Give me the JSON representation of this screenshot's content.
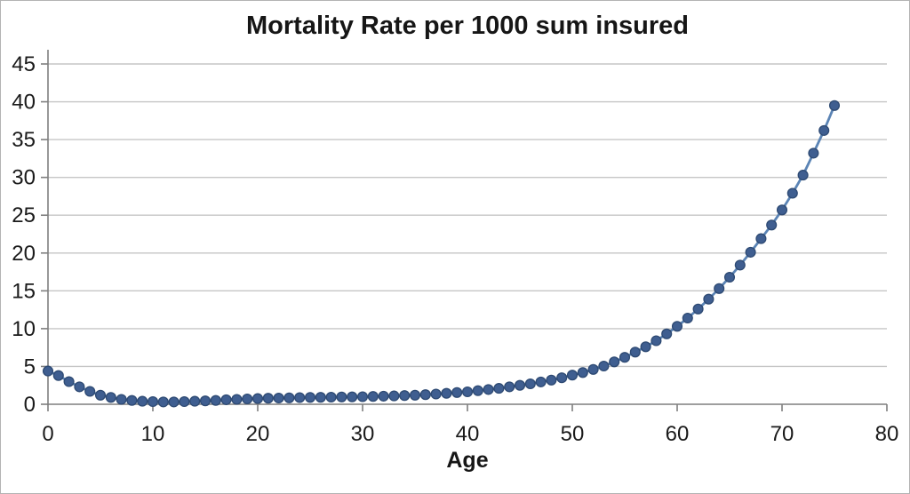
{
  "chart_data": {
    "type": "line",
    "title": "Mortality Rate per 1000 sum insured",
    "xlabel": "Age",
    "ylabel": "",
    "xlim": [
      0,
      80
    ],
    "ylim": [
      0,
      45
    ],
    "x_ticks": [
      0,
      10,
      20,
      30,
      40,
      50,
      60,
      70,
      80
    ],
    "y_ticks": [
      0,
      5,
      10,
      15,
      20,
      25,
      30,
      35,
      40,
      45
    ],
    "grid": "horizontal",
    "legend": "none",
    "x": [
      0,
      1,
      2,
      3,
      4,
      5,
      6,
      7,
      8,
      9,
      10,
      11,
      12,
      13,
      14,
      15,
      16,
      17,
      18,
      19,
      20,
      21,
      22,
      23,
      24,
      25,
      26,
      27,
      28,
      29,
      30,
      31,
      32,
      33,
      34,
      35,
      36,
      37,
      38,
      39,
      40,
      41,
      42,
      43,
      44,
      45,
      46,
      47,
      48,
      49,
      50,
      51,
      52,
      53,
      54,
      55,
      56,
      57,
      58,
      59,
      60,
      61,
      62,
      63,
      64,
      65,
      66,
      67,
      68,
      69,
      70,
      71,
      72,
      73,
      74,
      75
    ],
    "series": [
      {
        "name": "Mortality Rate per 1000 sum insured",
        "values": [
          4.4,
          3.8,
          3.0,
          2.3,
          1.7,
          1.2,
          0.9,
          0.65,
          0.5,
          0.4,
          0.35,
          0.3,
          0.3,
          0.35,
          0.4,
          0.45,
          0.5,
          0.6,
          0.65,
          0.7,
          0.75,
          0.8,
          0.82,
          0.85,
          0.88,
          0.9,
          0.92,
          0.94,
          0.96,
          0.98,
          1.0,
          1.03,
          1.07,
          1.1,
          1.15,
          1.2,
          1.27,
          1.35,
          1.45,
          1.55,
          1.65,
          1.8,
          1.95,
          2.1,
          2.3,
          2.5,
          2.7,
          2.95,
          3.2,
          3.5,
          3.85,
          4.2,
          4.6,
          5.05,
          5.6,
          6.2,
          6.9,
          7.6,
          8.4,
          9.3,
          10.3,
          11.4,
          12.6,
          13.9,
          15.3,
          16.8,
          18.4,
          20.1,
          21.9,
          23.7,
          25.7,
          27.9,
          30.3,
          33.2,
          36.2,
          39.5
        ]
      }
    ],
    "colors": {
      "line": "#5b84b5",
      "marker_fill": "#3f5e90",
      "marker_border": "#2e4a73",
      "gridline": "#c6c6c6",
      "axis": "#7f7f7f",
      "tick_text": "#1a1a1a",
      "frame_border": "#b3b3b3",
      "background": "#ffffff"
    }
  }
}
